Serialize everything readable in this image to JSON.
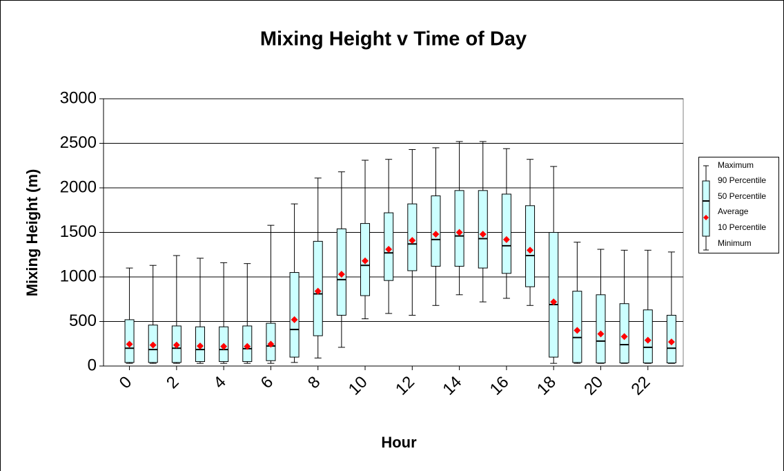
{
  "chart_data": {
    "type": "box",
    "title": "Mixing Height v Time of Day",
    "x_label": "Hour",
    "y_label": "Mixing Height (m)",
    "x": [
      0,
      1,
      2,
      3,
      4,
      5,
      6,
      7,
      8,
      9,
      10,
      11,
      12,
      13,
      14,
      15,
      16,
      17,
      18,
      19,
      20,
      21,
      22,
      23
    ],
    "xlim": [
      -1.1,
      23.5
    ],
    "xticks": [
      0,
      2,
      4,
      6,
      8,
      10,
      12,
      14,
      16,
      18,
      20,
      22
    ],
    "ylim": [
      0,
      3000
    ],
    "yticks": [
      0,
      500,
      1000,
      1500,
      2000,
      2500,
      3000
    ],
    "grid": true,
    "box_color": "#ccffff",
    "legend": "right",
    "series": [
      {
        "name": "Maximum",
        "values": [
          1100,
          1130,
          1240,
          1210,
          1160,
          1150,
          1580,
          1820,
          2110,
          2180,
          2310,
          2320,
          2430,
          2450,
          2520,
          2520,
          2440,
          2320,
          2240,
          1390,
          1310,
          1300,
          1300,
          1280
        ]
      },
      {
        "name": "90 Percentile",
        "values": [
          520,
          460,
          450,
          440,
          440,
          450,
          480,
          1050,
          1400,
          1540,
          1600,
          1720,
          1820,
          1910,
          1970,
          1970,
          1930,
          1800,
          1500,
          840,
          800,
          700,
          630,
          570
        ]
      },
      {
        "name": "50 Percentile",
        "values": [
          200,
          185,
          200,
          185,
          185,
          195,
          225,
          410,
          810,
          970,
          1130,
          1270,
          1370,
          1420,
          1460,
          1430,
          1350,
          1240,
          690,
          320,
          280,
          240,
          210,
          200
        ]
      },
      {
        "name": "Average",
        "color": "#ff0000",
        "values": [
          245,
          235,
          235,
          225,
          220,
          220,
          245,
          520,
          840,
          1030,
          1180,
          1310,
          1410,
          1480,
          1500,
          1480,
          1420,
          1300,
          720,
          400,
          360,
          330,
          290,
          270
        ]
      },
      {
        "name": "10 Percentile",
        "values": [
          40,
          40,
          40,
          50,
          50,
          50,
          60,
          100,
          340,
          570,
          790,
          960,
          1070,
          1120,
          1120,
          1100,
          1040,
          890,
          100,
          40,
          35,
          35,
          35,
          35
        ]
      },
      {
        "name": "Minimum",
        "values": [
          30,
          30,
          30,
          30,
          30,
          30,
          30,
          40,
          90,
          210,
          530,
          590,
          570,
          680,
          800,
          720,
          760,
          680,
          30,
          30,
          30,
          30,
          30,
          30
        ]
      }
    ]
  }
}
